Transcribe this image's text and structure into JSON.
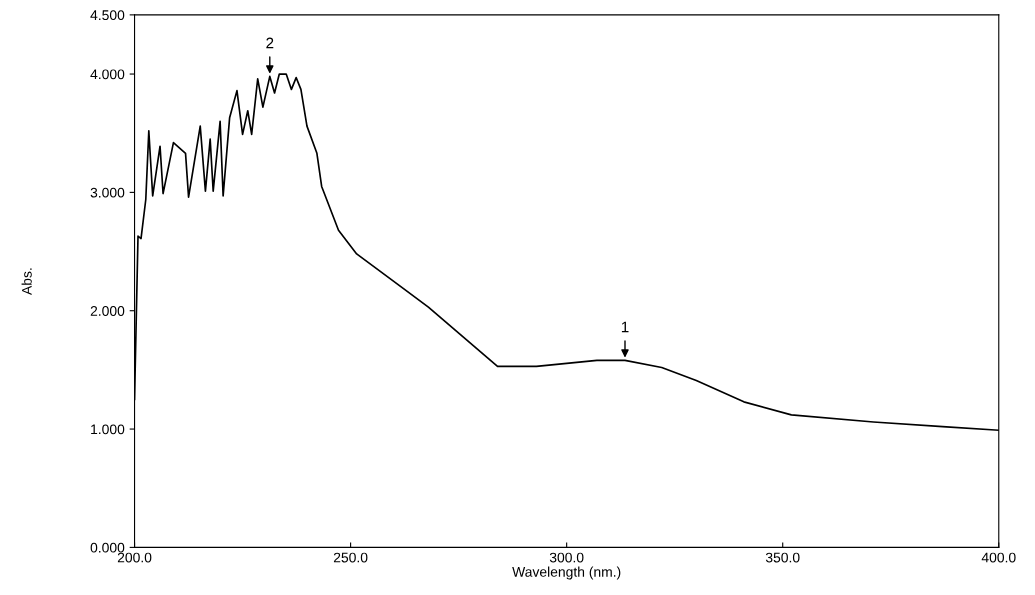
{
  "chart_data": {
    "type": "line",
    "xlabel": "Wavelength (nm.)",
    "ylabel": "Abs.",
    "xlim": [
      200,
      400
    ],
    "ylim": [
      0,
      4.5
    ],
    "xticks": [
      {
        "value": 200,
        "label": "200.0"
      },
      {
        "value": 250,
        "label": "250.0"
      },
      {
        "value": 300,
        "label": "300.0"
      },
      {
        "value": 350,
        "label": "350.0"
      },
      {
        "value": 400,
        "label": "400.0"
      }
    ],
    "yticks": [
      {
        "value": 0,
        "label": "0.000"
      },
      {
        "value": 1,
        "label": "1.000"
      },
      {
        "value": 2,
        "label": "2.000"
      },
      {
        "value": 3,
        "label": "3.000"
      },
      {
        "value": 4,
        "label": "4.000"
      },
      {
        "value": 4.5,
        "label": "4.500"
      }
    ],
    "grid": false,
    "legend": false,
    "marker": "none",
    "line_style": "solid",
    "annotations": [
      {
        "text": "2",
        "x": 231.3,
        "y": 3.98
      },
      {
        "text": "1",
        "x": 313.5,
        "y": 1.58
      }
    ],
    "series": [
      {
        "color": "#000000",
        "x": [
          200,
          200.8,
          201.5,
          202.6,
          203.3,
          204.2,
          205.9,
          206.6,
          209,
          211.8,
          212.5,
          215.2,
          216.4,
          217.5,
          218.2,
          219.8,
          220.5,
          222,
          223.7,
          225,
          226.2,
          227.1,
          228.5,
          229.7,
          231.3,
          232.4,
          233.5,
          235.1,
          236.3,
          237.4,
          238.5,
          239.9,
          242.2,
          243.3,
          247.2,
          251.4,
          261,
          268,
          284,
          293,
          307,
          313.5,
          322,
          330,
          341,
          352,
          371,
          387,
          400
        ],
        "values": [
          1.25,
          2.63,
          2.61,
          2.94,
          3.52,
          2.97,
          3.39,
          2.99,
          3.42,
          3.33,
          2.96,
          3.56,
          3.01,
          3.45,
          3.01,
          3.6,
          2.97,
          3.63,
          3.86,
          3.49,
          3.69,
          3.49,
          3.96,
          3.72,
          3.98,
          3.84,
          4.0,
          4.0,
          3.87,
          3.97,
          3.87,
          3.56,
          3.33,
          3.05,
          2.68,
          2.48,
          2.22,
          2.03,
          1.53,
          1.53,
          1.58,
          1.58,
          1.52,
          1.41,
          1.23,
          1.12,
          1.06,
          1.02,
          0.99
        ]
      }
    ]
  }
}
